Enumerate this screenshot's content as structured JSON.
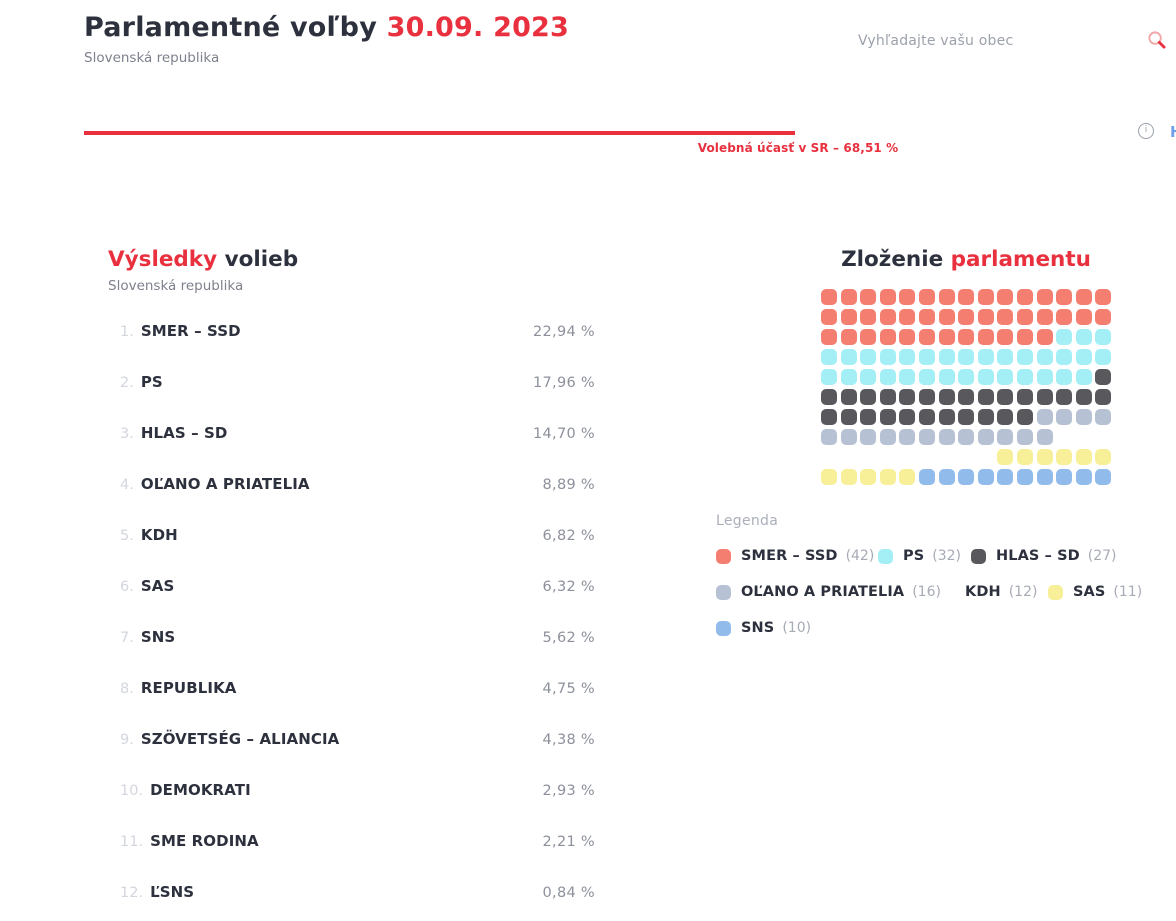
{
  "header": {
    "title": "Parlamentné voľby",
    "date": "30.09. 2023",
    "subtitle": "Slovenská republika",
    "search_placeholder": "Vyhľadajte vašu obec"
  },
  "turnout": {
    "label": "Volebná účasť v SR – 68,51 %",
    "percent": 68.51
  },
  "edge_fragment": "H",
  "results": {
    "title_accent": "Výsledky",
    "title_rest": " volieb",
    "subtitle": "Slovenská republika",
    "parties": [
      {
        "rank": "1.",
        "name": "SMER – SSD",
        "percent": "22,94 %"
      },
      {
        "rank": "2.",
        "name": "PS",
        "percent": "17,96 %"
      },
      {
        "rank": "3.",
        "name": "HLAS – SD",
        "percent": "14,70 %"
      },
      {
        "rank": "4.",
        "name": "OĽANO A PRIATELIA",
        "percent": "8,89 %"
      },
      {
        "rank": "5.",
        "name": "KDH",
        "percent": "6,82 %"
      },
      {
        "rank": "6.",
        "name": "SAS",
        "percent": "6,32 %"
      },
      {
        "rank": "7.",
        "name": "SNS",
        "percent": "5,62 %"
      },
      {
        "rank": "8.",
        "name": "REPUBLIKA",
        "percent": "4,75 %"
      },
      {
        "rank": "9.",
        "name": "SZÖVETSÉG – ALIANCIA",
        "percent": "4,38 %"
      },
      {
        "rank": "10.",
        "name": "DEMOKRATI",
        "percent": "2,93 %"
      },
      {
        "rank": "11.",
        "name": "SME RODINA",
        "percent": "2,21 %"
      },
      {
        "rank": "12.",
        "name": "ĽSNS",
        "percent": "0,84 %"
      }
    ]
  },
  "parliament": {
    "title_rest": "Zloženie ",
    "title_accent": "parlamentu",
    "total_seats": 150,
    "grid_columns": 15,
    "legend_label": "Legenda",
    "parties": [
      {
        "name": "SMER – SSD",
        "seats": 42,
        "color": "#F47E70"
      },
      {
        "name": "PS",
        "seats": 32,
        "color": "#A3EFF5"
      },
      {
        "name": "HLAS – SD",
        "seats": 27,
        "color": "#58585D"
      },
      {
        "name": "OĽANO A PRIATELIA",
        "seats": 16,
        "color": "#B7C1D4"
      },
      {
        "name": "KDH",
        "seats": 12,
        "color": "#FFFFFF"
      },
      {
        "name": "SAS",
        "seats": 11,
        "color": "#F8F098"
      },
      {
        "name": "SNS",
        "seats": 10,
        "color": "#90BBEB"
      }
    ],
    "legend_rows": [
      [
        0,
        1,
        2
      ],
      [
        3,
        4,
        5
      ],
      [
        6
      ]
    ]
  },
  "colors": {
    "accent_red": "#E8303E",
    "dark_text": "#2D313D",
    "gray_text": "#8D919C"
  }
}
